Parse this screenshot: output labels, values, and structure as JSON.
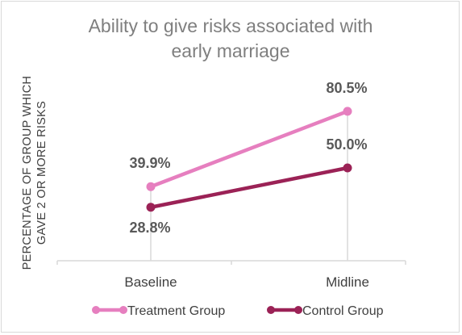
{
  "chart_data": {
    "type": "line",
    "title_lines": [
      "Ability to give risks associated with",
      "early marriage"
    ],
    "ylabel_lines": [
      "PERCENTAGE OF GROUP WHICH",
      "GAVE 2 OR MORE RISKS"
    ],
    "categories": [
      "Baseline",
      "Midline"
    ],
    "ylim": [
      0,
      100
    ],
    "grid": false,
    "legend_position": "bottom",
    "series": [
      {
        "name": "Treatment Group",
        "values": [
          39.9,
          80.5
        ],
        "labels": [
          "39.9%",
          "80.5%"
        ],
        "color": "#e67fbf"
      },
      {
        "name": "Control Group",
        "values": [
          28.8,
          50.0
        ],
        "labels": [
          "28.8%",
          "50.0%"
        ],
        "color": "#9b2256"
      }
    ]
  }
}
